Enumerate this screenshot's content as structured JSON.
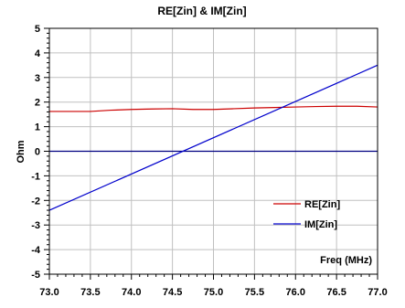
{
  "chart_data": {
    "type": "line",
    "title": "RE[Zin] & IM[Zin]",
    "xlabel": "Freq (MHz)",
    "ylabel": "Ohm",
    "xlim": [
      73.0,
      77.0
    ],
    "ylim": [
      -5,
      5
    ],
    "x_ticks": [
      "73.0",
      "73.5",
      "74.0",
      "74.5",
      "75.0",
      "75.5",
      "76.0",
      "76.5",
      "77.0"
    ],
    "y_ticks": [
      "5",
      "4",
      "3",
      "2",
      "1",
      "0",
      "-1",
      "-2",
      "-3",
      "-4",
      "-5"
    ],
    "grid": true,
    "legend_position": "bottom-right",
    "colors": {
      "re": "#cc0000",
      "im": "#0000cc",
      "zero": "#000080",
      "grid": "#c0c0c0"
    },
    "series": [
      {
        "name": "RE[Zin]",
        "x": [
          73.0,
          73.25,
          73.5,
          73.75,
          74.0,
          74.25,
          74.5,
          74.75,
          75.0,
          75.25,
          75.5,
          75.75,
          76.0,
          76.25,
          76.5,
          76.75,
          77.0
        ],
        "y": [
          1.62,
          1.62,
          1.62,
          1.67,
          1.7,
          1.72,
          1.73,
          1.7,
          1.7,
          1.73,
          1.76,
          1.78,
          1.8,
          1.82,
          1.83,
          1.83,
          1.8
        ]
      },
      {
        "name": "IM[Zin]",
        "x": [
          73.0,
          77.0
        ],
        "y": [
          -2.4,
          3.5
        ]
      }
    ]
  }
}
